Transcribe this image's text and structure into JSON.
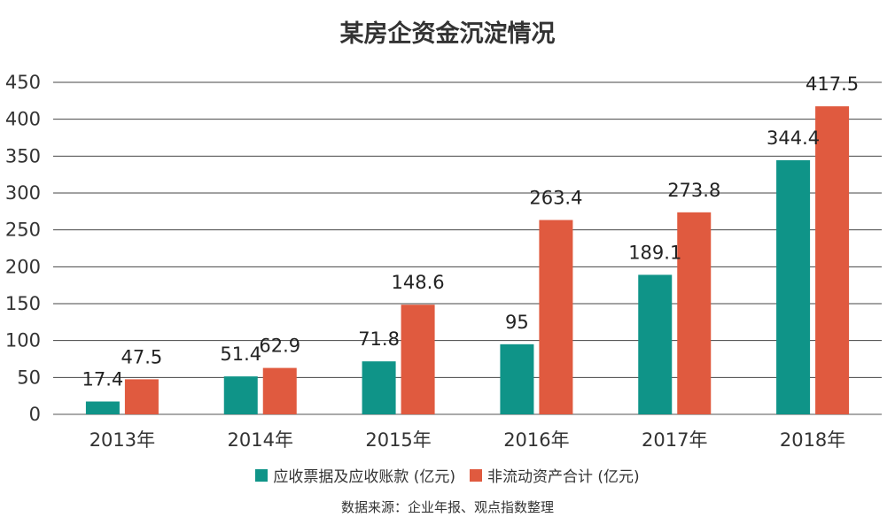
{
  "chart_data": {
    "type": "bar",
    "title": "某房企资金沉淀情况",
    "categories": [
      "2013年",
      "2014年",
      "2015年",
      "2016年",
      "2017年",
      "2018年"
    ],
    "series": [
      {
        "name": "应收票据及应收账款 (亿元)",
        "color": "#0f9488",
        "values": [
          17.4,
          51.4,
          71.8,
          95,
          189.1,
          344.4
        ]
      },
      {
        "name": "非流动资产合计 (亿元)",
        "color": "#e05a3f",
        "values": [
          47.5,
          62.9,
          148.6,
          263.4,
          273.8,
          417.5
        ]
      }
    ],
    "value_labels": [
      [
        "17.4",
        "51.4",
        "71.8",
        "95",
        "189.1",
        "344.4"
      ],
      [
        "47.5",
        "62.9",
        "148.6",
        "263.4",
        "273.8",
        "417.5"
      ]
    ],
    "ylim": [
      0,
      450
    ],
    "yticks": [
      0,
      50,
      100,
      150,
      200,
      250,
      300,
      350,
      400,
      450
    ],
    "xlabel": "",
    "ylabel": "",
    "grid": true,
    "legend_position": "bottom"
  },
  "source": "数据来源：企业年报、观点指数整理"
}
